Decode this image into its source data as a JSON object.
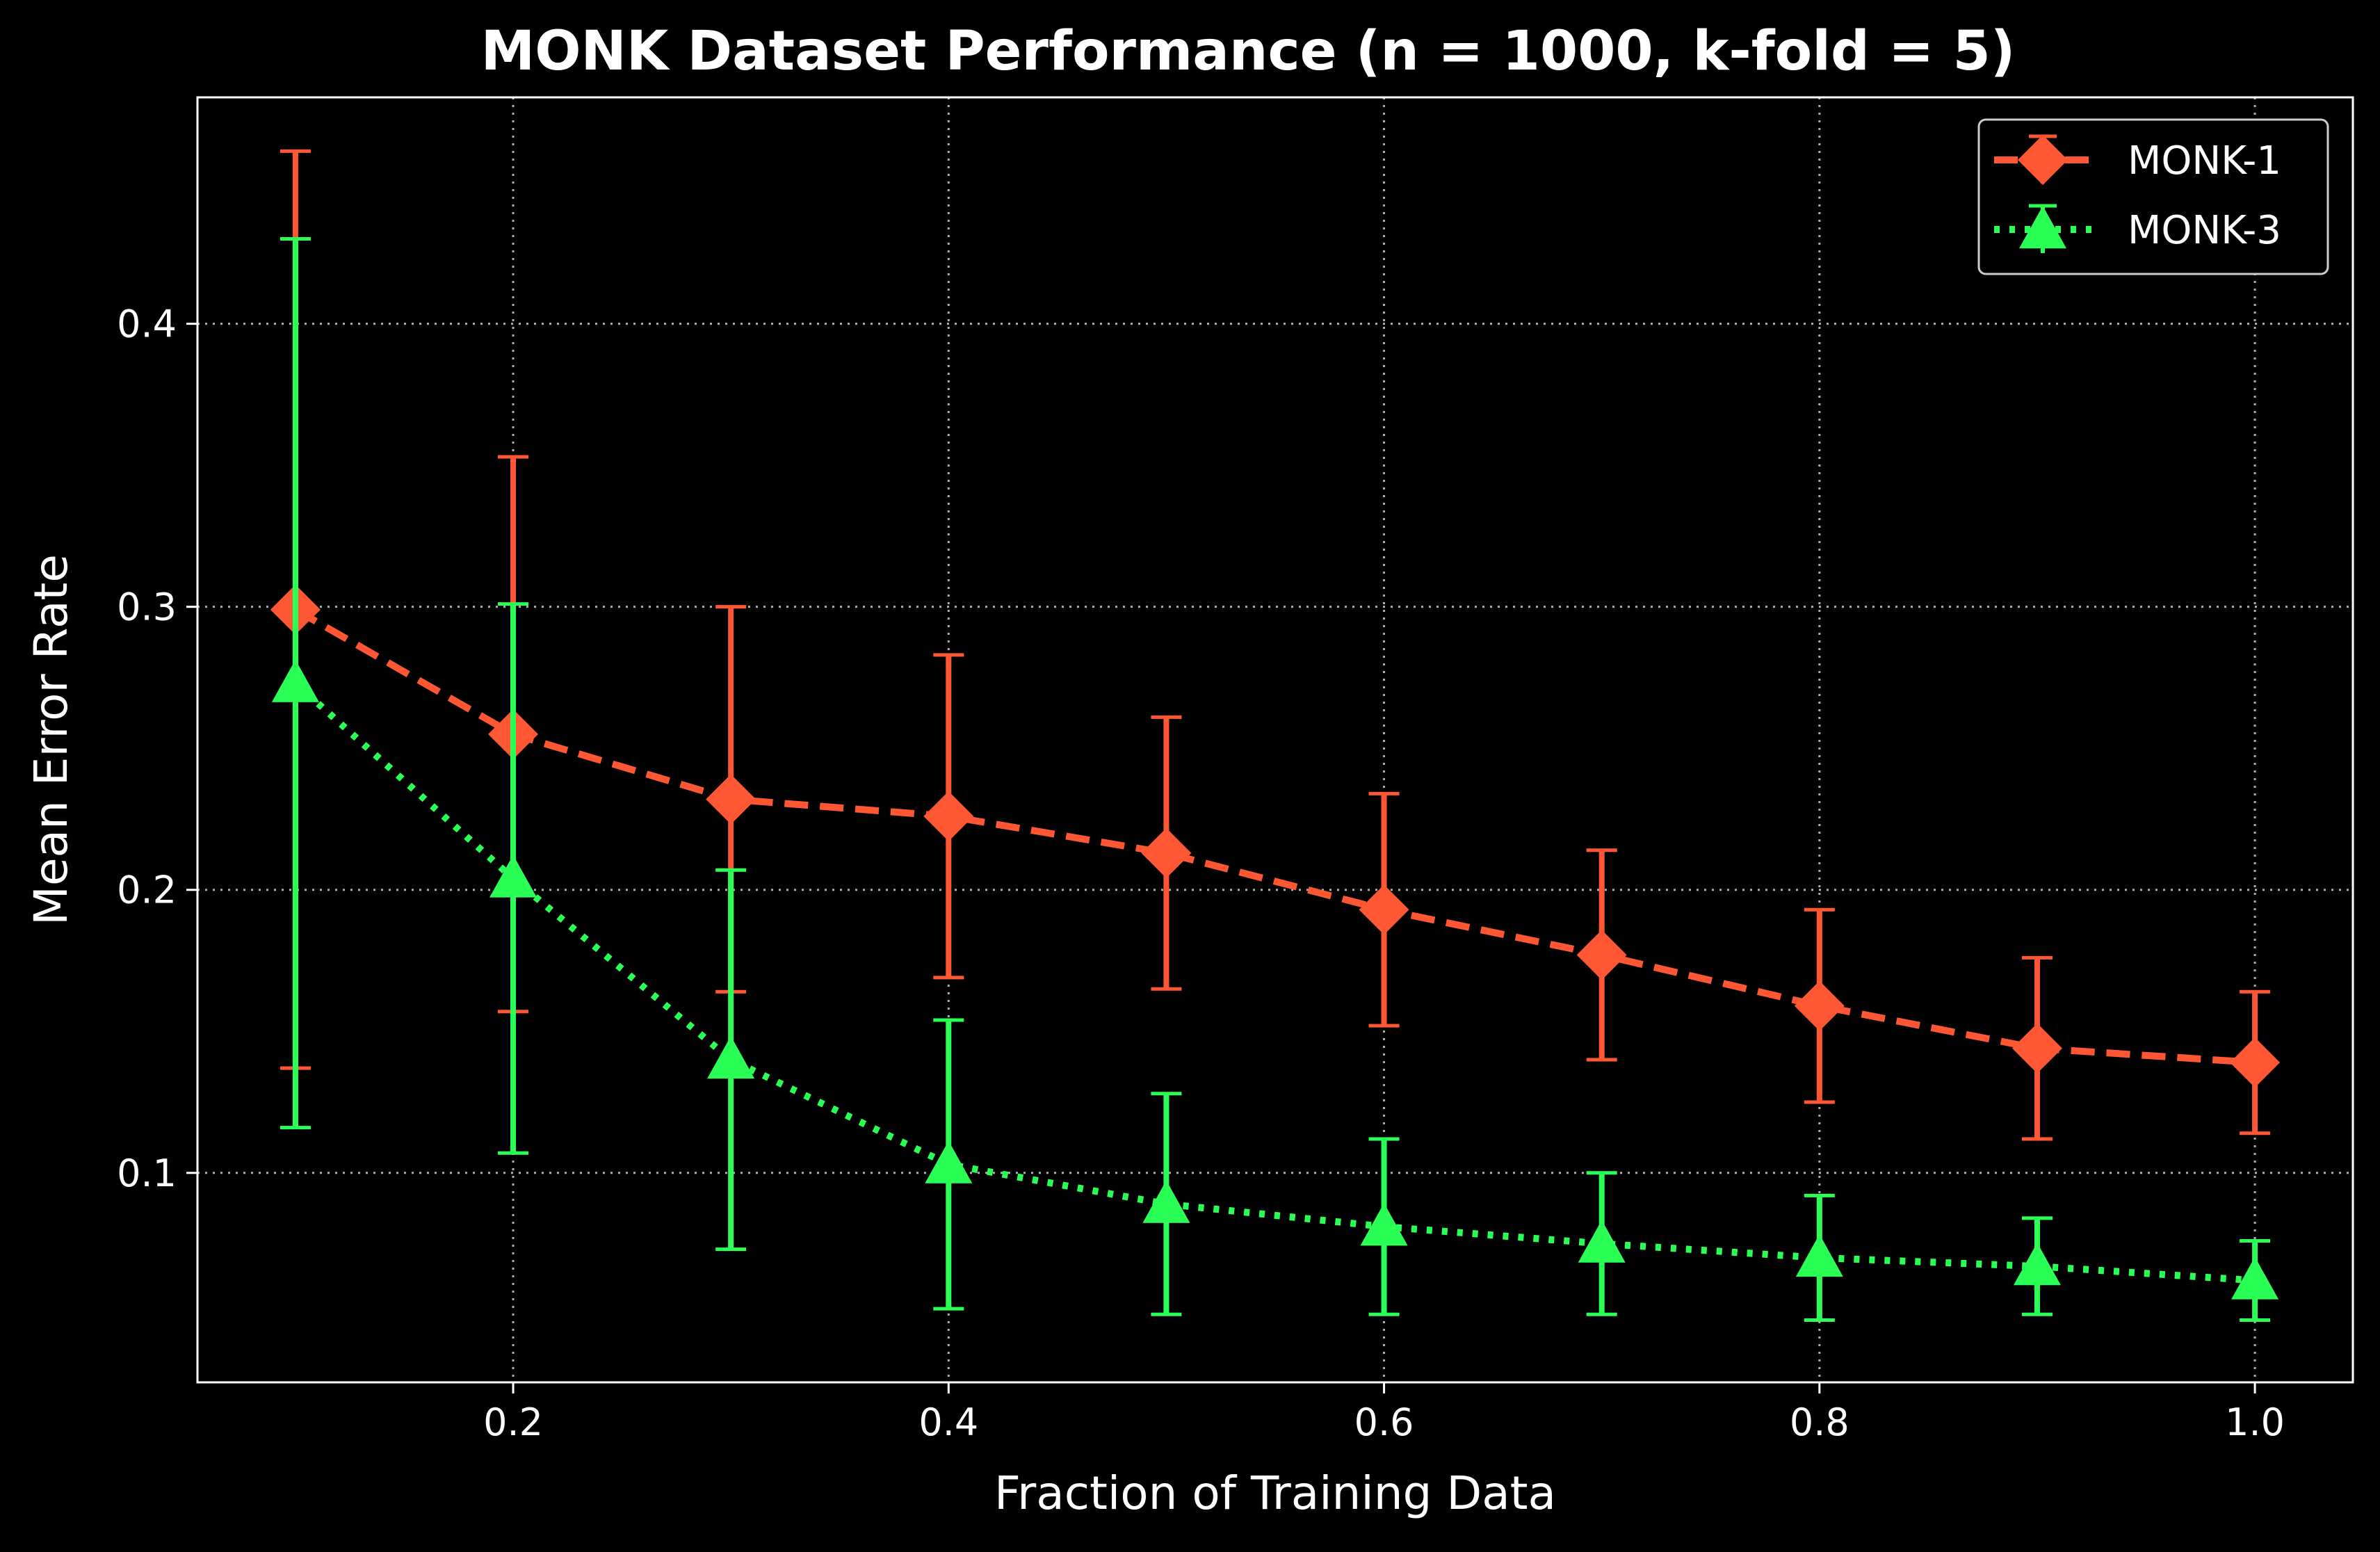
{
  "chart_data": {
    "type": "line",
    "title": "MONK Dataset Performance (n = 1000, k-fold = 5)",
    "xlabel": "Fraction of Training Data",
    "ylabel": "Mean Error Rate",
    "xlim": [
      0.055,
      1.045
    ],
    "ylim": [
      0.026,
      0.48
    ],
    "xticks": [
      0.2,
      0.4,
      0.6,
      0.8,
      1.0
    ],
    "xtick_labels": [
      "0.2",
      "0.4",
      "0.6",
      "0.8",
      "1.0"
    ],
    "yticks": [
      0.1,
      0.2,
      0.3,
      0.4
    ],
    "ytick_labels": [
      "0.1",
      "0.2",
      "0.3",
      "0.4"
    ],
    "grid": true,
    "legend_position": "top-right",
    "x": [
      0.1,
      0.2,
      0.3,
      0.4,
      0.5,
      0.6,
      0.7,
      0.8,
      0.9,
      1.0
    ],
    "series": [
      {
        "name": "MONK-1",
        "color": "#ff5733",
        "marker": "diamond",
        "linestyle": "dashed",
        "values": [
          0.299,
          0.255,
          0.232,
          0.226,
          0.213,
          0.193,
          0.177,
          0.159,
          0.144,
          0.139
        ],
        "error": [
          0.162,
          0.098,
          0.068,
          0.057,
          0.048,
          0.041,
          0.037,
          0.034,
          0.032,
          0.025
        ]
      },
      {
        "name": "MONK-3",
        "color": "#2aff55",
        "marker": "triangle",
        "linestyle": "dotted",
        "values": [
          0.273,
          0.204,
          0.14,
          0.103,
          0.089,
          0.081,
          0.075,
          0.07,
          0.067,
          0.062
        ],
        "error": [
          0.157,
          0.097,
          0.067,
          0.051,
          0.039,
          0.031,
          0.025,
          0.022,
          0.017,
          0.014
        ]
      }
    ]
  }
}
